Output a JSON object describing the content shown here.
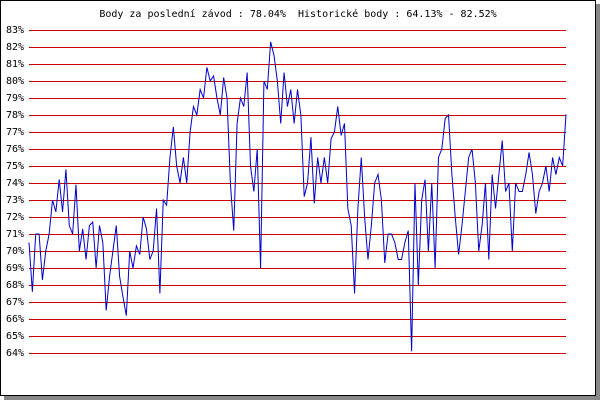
{
  "chart_data": {
    "type": "line",
    "title": "Body za poslední závod : 78.04%  Historické body : 64.13% - 82.52%",
    "ylim": [
      64,
      83
    ],
    "yticks": [
      {
        "value": 64,
        "label": "64%"
      },
      {
        "value": 65,
        "label": "65%"
      },
      {
        "value": 66,
        "label": "66%"
      },
      {
        "value": 67,
        "label": "67%"
      },
      {
        "value": 68,
        "label": "68%"
      },
      {
        "value": 69,
        "label": "69%"
      },
      {
        "value": 70,
        "label": "70%"
      },
      {
        "value": 71,
        "label": "71%"
      },
      {
        "value": 72,
        "label": "72%"
      },
      {
        "value": 73,
        "label": "73%"
      },
      {
        "value": 74,
        "label": "74%"
      },
      {
        "value": 75,
        "label": "75%"
      },
      {
        "value": 76,
        "label": "76%"
      },
      {
        "value": 77,
        "label": "77%"
      },
      {
        "value": 78,
        "label": "78%"
      },
      {
        "value": 79,
        "label": "79%"
      },
      {
        "value": 80,
        "label": "80%"
      },
      {
        "value": 81,
        "label": "81%"
      },
      {
        "value": 82,
        "label": "82%"
      },
      {
        "value": 83,
        "label": "83%"
      }
    ],
    "grid": true,
    "grid_color": "#cc0000",
    "color": "#0000cc",
    "values": [
      70.5,
      67.6,
      71,
      71,
      68.3,
      70,
      71,
      73,
      72.3,
      74.2,
      72.3,
      74.8,
      71.5,
      71,
      73.9,
      70,
      71.3,
      69.5,
      71.5,
      71.7,
      69,
      71.5,
      70.5,
      66.5,
      68.5,
      70,
      71.5,
      68.5,
      67.3,
      66.2,
      70,
      69,
      70.3,
      69.8,
      72,
      71.3,
      69.5,
      70,
      72.5,
      67.5,
      73,
      72.7,
      75.5,
      77.3,
      75,
      74,
      75.5,
      74,
      77,
      78.5,
      78,
      79.5,
      79,
      80.8,
      80,
      80.3,
      79,
      78,
      80.2,
      79,
      74,
      71.2,
      77.5,
      79,
      78.5,
      80.5,
      75,
      73.5,
      76,
      69,
      80,
      79.5,
      82.3,
      81.5,
      80,
      77.5,
      80.5,
      78.5,
      79.5,
      77.5,
      79.5,
      78,
      73.2,
      74,
      76.7,
      72.8,
      75.5,
      74,
      75.5,
      74,
      76.6,
      77,
      78.5,
      76.8,
      77.5,
      72.5,
      71.5,
      67.5,
      72.5,
      75.5,
      72,
      69.5,
      71.5,
      74,
      74.5,
      73,
      69.3,
      71,
      71,
      70.5,
      69.5,
      69.5,
      70.5,
      71.2,
      64.1,
      74,
      68,
      73,
      74.2,
      70,
      74,
      69,
      75.5,
      76,
      77.8,
      78,
      74.5,
      72,
      69.8,
      71.5,
      73.5,
      75.5,
      76,
      74,
      70,
      71.5,
      74,
      69.5,
      74.5,
      72.5,
      74.5,
      76.5,
      73.5,
      74,
      70,
      74,
      73.5,
      73.5,
      74.5,
      75.8,
      74.5,
      72.2,
      73.5,
      74,
      75,
      73.5,
      75.5,
      74.5,
      75.5,
      75,
      78.04
    ]
  }
}
